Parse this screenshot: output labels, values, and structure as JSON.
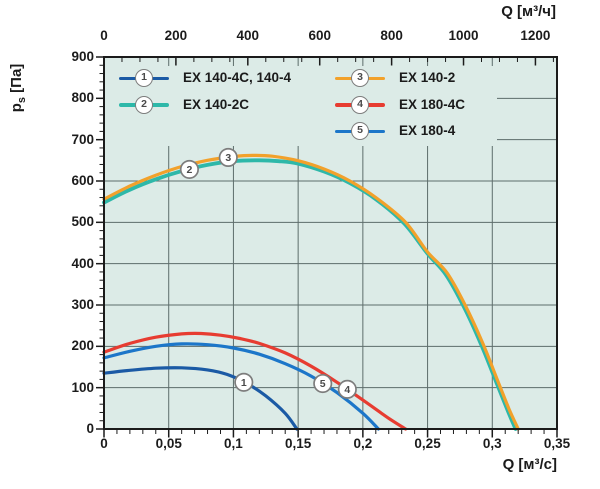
{
  "colors": {
    "page_bg": "#ffffff",
    "plot_bg": "#dcebe7",
    "grid": "#5d6d6b",
    "axis": "#1b1b1b",
    "text": "#1b1b1b",
    "marker_stroke": "#7d7d7d",
    "marker_text": "#4a4a4a"
  },
  "chart_data": {
    "type": "line",
    "title": "",
    "x_axis_bottom": {
      "label": "Q [м³/с]",
      "range": [
        0,
        0.35
      ],
      "tick_values": [
        0,
        0.05,
        0.1,
        0.15,
        0.2,
        0.25,
        0.3,
        0.35
      ],
      "tick_labels": [
        "0",
        "0,05",
        "0,1",
        "0,15",
        "0,2",
        "0,25",
        "0,3",
        "0,35"
      ],
      "minor_step": 0.01,
      "grid": true
    },
    "x_axis_top": {
      "label": "Q [м³/ч]",
      "unit_factor_from_bottom": 3600,
      "tick_values": [
        0,
        200,
        400,
        600,
        800,
        1000,
        1200
      ],
      "tick_labels": [
        "0",
        "200",
        "400",
        "600",
        "800",
        "1000",
        "1200"
      ],
      "minor_step": 50
    },
    "y_axis": {
      "label_main": "p",
      "label_sub": "s",
      "label_unit": " [Па]",
      "range": [
        0,
        900
      ],
      "tick_values": [
        0,
        100,
        200,
        300,
        400,
        500,
        600,
        700,
        800,
        900
      ],
      "tick_labels": [
        "0",
        "100",
        "200",
        "300",
        "400",
        "500",
        "600",
        "700",
        "800",
        "900"
      ],
      "minor_step": 20,
      "grid": true
    },
    "series": [
      {
        "id": "1",
        "name": "EX 140-4C, 140-4",
        "color": "#1b5aa5",
        "marker": {
          "q": 0.108,
          "p": 113
        },
        "points": [
          [
            0,
            135
          ],
          [
            0.02,
            142
          ],
          [
            0.04,
            147
          ],
          [
            0.06,
            148
          ],
          [
            0.08,
            143
          ],
          [
            0.095,
            132
          ],
          [
            0.11,
            111
          ],
          [
            0.125,
            80
          ],
          [
            0.14,
            38
          ],
          [
            0.149,
            0
          ]
        ]
      },
      {
        "id": "2",
        "name": "EX 140-2C",
        "color": "#2eb8a9",
        "marker": {
          "q": 0.066,
          "p": 628
        },
        "points": [
          [
            0,
            548
          ],
          [
            0.02,
            579
          ],
          [
            0.04,
            604
          ],
          [
            0.06,
            624
          ],
          [
            0.08,
            639
          ],
          [
            0.1,
            648
          ],
          [
            0.12,
            650
          ],
          [
            0.135,
            648
          ],
          [
            0.15,
            642
          ],
          [
            0.17,
            623
          ],
          [
            0.19,
            595
          ],
          [
            0.21,
            556
          ],
          [
            0.232,
            497
          ],
          [
            0.25,
            424
          ],
          [
            0.264,
            374
          ],
          [
            0.278,
            296
          ],
          [
            0.292,
            200
          ],
          [
            0.304,
            106
          ],
          [
            0.312,
            44
          ],
          [
            0.318,
            0
          ]
        ]
      },
      {
        "id": "3",
        "name": "EX 140-2",
        "color": "#f2a12b",
        "marker": {
          "q": 0.096,
          "p": 657
        },
        "points": [
          [
            0,
            556
          ],
          [
            0.02,
            588
          ],
          [
            0.04,
            614
          ],
          [
            0.06,
            635
          ],
          [
            0.08,
            650
          ],
          [
            0.1,
            659
          ],
          [
            0.115,
            662
          ],
          [
            0.13,
            660
          ],
          [
            0.15,
            649
          ],
          [
            0.17,
            629
          ],
          [
            0.19,
            600
          ],
          [
            0.21,
            560
          ],
          [
            0.233,
            500
          ],
          [
            0.25,
            428
          ],
          [
            0.265,
            378
          ],
          [
            0.279,
            300
          ],
          [
            0.293,
            205
          ],
          [
            0.305,
            110
          ],
          [
            0.313,
            48
          ],
          [
            0.32,
            0
          ]
        ]
      },
      {
        "id": "4",
        "name": "EX 180-4C",
        "color": "#e73c31",
        "marker": {
          "q": 0.188,
          "p": 96
        },
        "points": [
          [
            0,
            186
          ],
          [
            0.02,
            207
          ],
          [
            0.04,
            222
          ],
          [
            0.06,
            230
          ],
          [
            0.075,
            231
          ],
          [
            0.09,
            227
          ],
          [
            0.105,
            219
          ],
          [
            0.12,
            207
          ],
          [
            0.14,
            184
          ],
          [
            0.16,
            152
          ],
          [
            0.18,
            113
          ],
          [
            0.2,
            70
          ],
          [
            0.22,
            26
          ],
          [
            0.233,
            0
          ]
        ]
      },
      {
        "id": "5",
        "name": "EX 180-4",
        "color": "#1c76c9",
        "marker": {
          "q": 0.169,
          "p": 110
        },
        "points": [
          [
            0,
            172
          ],
          [
            0.02,
            188
          ],
          [
            0.04,
            200
          ],
          [
            0.06,
            206
          ],
          [
            0.08,
            204
          ],
          [
            0.1,
            196
          ],
          [
            0.12,
            181
          ],
          [
            0.14,
            158
          ],
          [
            0.16,
            128
          ],
          [
            0.18,
            88
          ],
          [
            0.2,
            38
          ],
          [
            0.212,
            0
          ]
        ]
      }
    ],
    "legend": {
      "columns": [
        [
          "1",
          "2"
        ],
        [
          "3",
          "4",
          "5"
        ]
      ],
      "position": "top-left-inside"
    }
  }
}
